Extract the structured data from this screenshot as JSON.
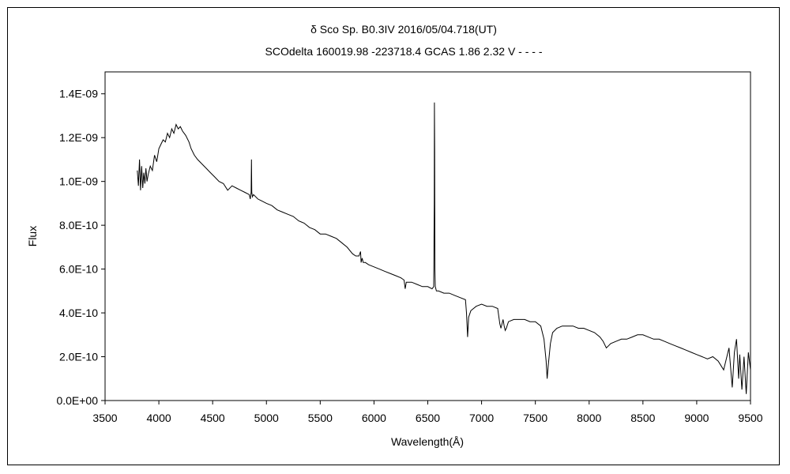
{
  "chart_data": {
    "type": "line",
    "title": "δ Sco    Sp. B0.3IV    2016/05/04.718(UT)",
    "subtitle": "SCOdelta 160019.98 -223718.4 GCAS 1.86 2.32 V - - - -",
    "xlabel": "Wavelength(Å)",
    "ylabel": "Flux",
    "xlim": [
      3500,
      9500
    ],
    "ylim": [
      0,
      1.5e-09
    ],
    "x_ticks": [
      "3500",
      "4000",
      "4500",
      "5000",
      "5500",
      "6000",
      "6500",
      "7000",
      "7500",
      "8000",
      "8500",
      "9000",
      "9500"
    ],
    "y_ticks": [
      "0.0E+00",
      "2.0E-10",
      "4.0E-10",
      "6.0E-10",
      "8.0E-10",
      "1.0E-09",
      "1.2E-09",
      "1.4E-09"
    ],
    "grid": false,
    "series": [
      {
        "color": "#000000",
        "x": [
          3800,
          3810,
          3820,
          3830,
          3840,
          3850,
          3860,
          3870,
          3880,
          3890,
          3900,
          3920,
          3940,
          3960,
          3980,
          4000,
          4020,
          4040,
          4060,
          4080,
          4100,
          4120,
          4140,
          4160,
          4180,
          4200,
          4220,
          4250,
          4280,
          4300,
          4330,
          4360,
          4400,
          4440,
          4480,
          4520,
          4560,
          4600,
          4640,
          4680,
          4720,
          4760,
          4800,
          4840,
          4850,
          4858,
          4861,
          4864,
          4870,
          4880,
          4920,
          4960,
          5000,
          5050,
          5100,
          5150,
          5200,
          5250,
          5300,
          5350,
          5400,
          5450,
          5500,
          5550,
          5600,
          5650,
          5700,
          5750,
          5800,
          5830,
          5860,
          5875,
          5880,
          5890,
          5900,
          5920,
          5950,
          6000,
          6050,
          6100,
          6150,
          6200,
          6250,
          6280,
          6290,
          6300,
          6350,
          6400,
          6450,
          6500,
          6540,
          6555,
          6560,
          6562,
          6564,
          6566,
          6570,
          6580,
          6600,
          6650,
          6700,
          6750,
          6800,
          6850,
          6860,
          6870,
          6880,
          6900,
          6950,
          7000,
          7050,
          7100,
          7150,
          7170,
          7180,
          7200,
          7210,
          7220,
          7230,
          7250,
          7300,
          7350,
          7400,
          7450,
          7500,
          7550,
          7580,
          7600,
          7610,
          7620,
          7640,
          7660,
          7700,
          7750,
          7800,
          7850,
          7900,
          7950,
          8000,
          8050,
          8100,
          8130,
          8150,
          8160,
          8180,
          8200,
          8250,
          8300,
          8350,
          8400,
          8450,
          8500,
          8550,
          8600,
          8650,
          8700,
          8750,
          8800,
          8850,
          8900,
          8950,
          9000,
          9050,
          9100,
          9150,
          9200,
          9250,
          9300,
          9330,
          9350,
          9370,
          9390,
          9400,
          9420,
          9440,
          9460,
          9480,
          9500
        ],
        "y": [
          1.05e-09,
          9.8e-10,
          1.1e-09,
          9.6e-10,
          1.07e-09,
          9.7e-10,
          1.04e-09,
          9.9e-10,
          1.06e-09,
          1e-09,
          1.03e-09,
          1.07e-09,
          1.05e-09,
          1.12e-09,
          1.09e-09,
          1.15e-09,
          1.17e-09,
          1.19e-09,
          1.18e-09,
          1.22e-09,
          1.2e-09,
          1.24e-09,
          1.22e-09,
          1.26e-09,
          1.24e-09,
          1.25e-09,
          1.23e-09,
          1.21e-09,
          1.18e-09,
          1.15e-09,
          1.12e-09,
          1.1e-09,
          1.08e-09,
          1.06e-09,
          1.04e-09,
          1.02e-09,
          1e-09,
          9.9e-10,
          9.6e-10,
          9.8e-10,
          9.7e-10,
          9.6e-10,
          9.5e-10,
          9.4e-10,
          9.2e-10,
          9.5e-10,
          1.1e-09,
          9.5e-10,
          9.3e-10,
          9.4e-10,
          9.2e-10,
          9.1e-10,
          9e-10,
          8.9e-10,
          8.7e-10,
          8.6e-10,
          8.5e-10,
          8.4e-10,
          8.2e-10,
          8.1e-10,
          7.9e-10,
          7.8e-10,
          7.6e-10,
          7.6e-10,
          7.5e-10,
          7.4e-10,
          7.2e-10,
          7e-10,
          6.7e-10,
          6.6e-10,
          6.6e-10,
          6.8e-10,
          6.3e-10,
          6.5e-10,
          6.3e-10,
          6.3e-10,
          6.2e-10,
          6.1e-10,
          6e-10,
          5.9e-10,
          5.8e-10,
          5.7e-10,
          5.6e-10,
          5.5e-10,
          5.1e-10,
          5.4e-10,
          5.4e-10,
          5.3e-10,
          5.2e-10,
          5.2e-10,
          5.1e-10,
          5.2e-10,
          9e-10,
          1.36e-09,
          1.15e-09,
          6e-10,
          5.2e-10,
          5e-10,
          5e-10,
          4.9e-10,
          4.9e-10,
          4.8e-10,
          4.7e-10,
          4.6e-10,
          4e-10,
          2.9e-10,
          3.8e-10,
          4.1e-10,
          4.3e-10,
          4.4e-10,
          4.3e-10,
          4.3e-10,
          4.2e-10,
          3.5e-10,
          3.3e-10,
          3.7e-10,
          3.4e-10,
          3.2e-10,
          3.3e-10,
          3.6e-10,
          3.7e-10,
          3.7e-10,
          3.7e-10,
          3.6e-10,
          3.6e-10,
          3.4e-10,
          2.8e-10,
          1.8e-10,
          1e-10,
          1.6e-10,
          2.6e-10,
          3.1e-10,
          3.3e-10,
          3.4e-10,
          3.4e-10,
          3.4e-10,
          3.3e-10,
          3.3e-10,
          3.2e-10,
          3.1e-10,
          2.9e-10,
          2.7e-10,
          2.5e-10,
          2.4e-10,
          2.5e-10,
          2.6e-10,
          2.7e-10,
          2.8e-10,
          2.8e-10,
          2.9e-10,
          3e-10,
          3e-10,
          2.9e-10,
          2.8e-10,
          2.8e-10,
          2.7e-10,
          2.6e-10,
          2.5e-10,
          2.4e-10,
          2.3e-10,
          2.2e-10,
          2.1e-10,
          2e-10,
          1.9e-10,
          2e-10,
          1.8e-10,
          1.4e-10,
          2.4e-10,
          6e-11,
          2.2e-10,
          2.8e-10,
          1e-10,
          2.1e-10,
          5e-11,
          2e-10,
          3e-11,
          2.2e-10,
          1.4e-10
        ]
      }
    ]
  }
}
